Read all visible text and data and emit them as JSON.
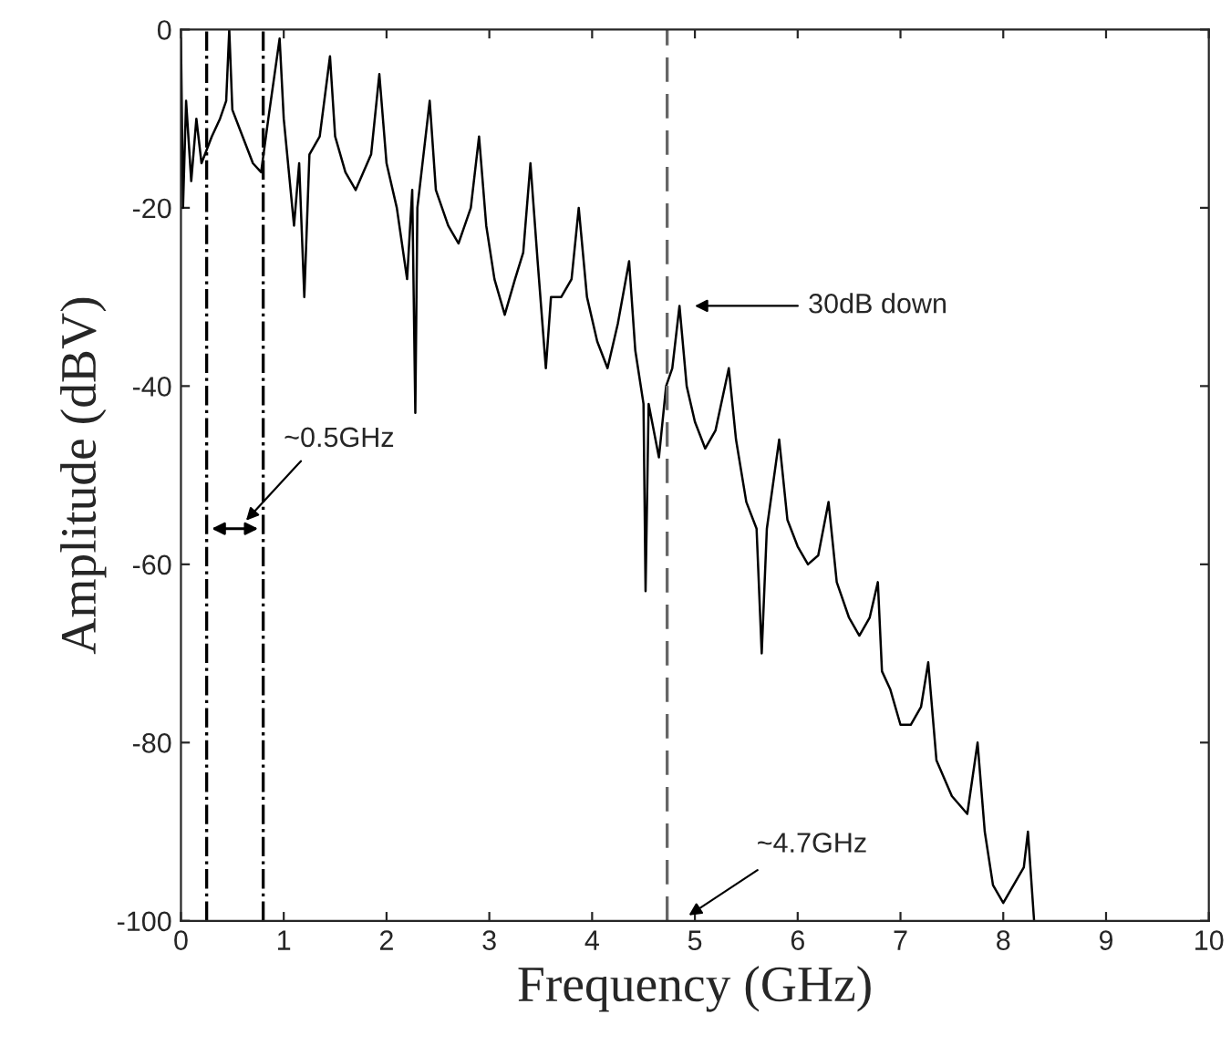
{
  "chart_data": {
    "type": "line",
    "xlabel": "Frequency (GHz)",
    "ylabel": "Amplitude (dBV)",
    "xlim": [
      0,
      10
    ],
    "ylim": [
      -100,
      0
    ],
    "xticks": [
      0,
      1,
      2,
      3,
      4,
      5,
      6,
      7,
      8,
      9,
      10
    ],
    "yticks": [
      -100,
      -80,
      -60,
      -40,
      -20,
      0
    ],
    "grid": false,
    "legend": false,
    "series": [
      {
        "color": "#000000",
        "x": [
          0,
          0.02,
          0.05,
          0.1,
          0.15,
          0.2,
          0.3,
          0.38,
          0.44,
          0.47,
          0.5,
          0.6,
          0.7,
          0.78,
          0.85,
          0.96,
          1.0,
          1.1,
          1.15,
          1.2,
          1.25,
          1.35,
          1.45,
          1.5,
          1.6,
          1.7,
          1.85,
          1.93,
          2.0,
          2.1,
          2.2,
          2.25,
          2.28,
          2.3,
          2.42,
          2.48,
          2.6,
          2.7,
          2.82,
          2.9,
          2.97,
          3.05,
          3.15,
          3.25,
          3.33,
          3.4,
          3.47,
          3.55,
          3.6,
          3.7,
          3.8,
          3.87,
          3.95,
          4.05,
          4.15,
          4.25,
          4.36,
          4.42,
          4.5,
          4.52,
          4.55,
          4.65,
          4.72,
          4.78,
          4.85,
          4.92,
          5.0,
          5.1,
          5.2,
          5.33,
          5.4,
          5.5,
          5.6,
          5.65,
          5.7,
          5.82,
          5.9,
          6.0,
          6.1,
          6.2,
          6.3,
          6.38,
          6.5,
          6.6,
          6.7,
          6.78,
          6.82,
          6.9,
          7.0,
          7.1,
          7.2,
          7.27,
          7.35,
          7.5,
          7.65,
          7.75,
          7.82,
          7.9,
          8.0,
          8.1,
          8.2,
          8.24,
          8.3
        ],
        "values": [
          -1,
          -20,
          -8,
          -17,
          -10,
          -15,
          -12,
          -10,
          -8,
          0,
          -9,
          -12,
          -15,
          -16,
          -10,
          -1,
          -10,
          -22,
          -15,
          -30,
          -14,
          -12,
          -3,
          -12,
          -16,
          -18,
          -14,
          -5,
          -15,
          -20,
          -28,
          -18,
          -43,
          -20,
          -8,
          -18,
          -22,
          -24,
          -20,
          -12,
          -22,
          -28,
          -32,
          -28,
          -25,
          -15,
          -26,
          -38,
          -30,
          -30,
          -28,
          -20,
          -30,
          -35,
          -38,
          -33,
          -26,
          -36,
          -42,
          -63,
          -42,
          -48,
          -40,
          -38,
          -31,
          -40,
          -44,
          -47,
          -45,
          -38,
          -46,
          -53,
          -56,
          -70,
          -56,
          -46,
          -55,
          -58,
          -60,
          -59,
          -53,
          -62,
          -66,
          -68,
          -66,
          -62,
          -72,
          -74,
          -78,
          -78,
          -76,
          -71,
          -82,
          -86,
          -88,
          -80,
          -90,
          -96,
          -98,
          -96,
          -94,
          -90,
          -100
        ]
      }
    ],
    "ref_lines": [
      {
        "axis": "x",
        "value": 0.25,
        "color": "#000000",
        "line_style": "dashdot"
      },
      {
        "axis": "x",
        "value": 0.8,
        "color": "#000000",
        "line_style": "dashdot"
      },
      {
        "axis": "x",
        "value": 4.73,
        "color": "#666666",
        "line_style": "dashed"
      }
    ],
    "annotations": [
      "~0.5GHz",
      "30dB down",
      "~4.7GHz"
    ]
  }
}
